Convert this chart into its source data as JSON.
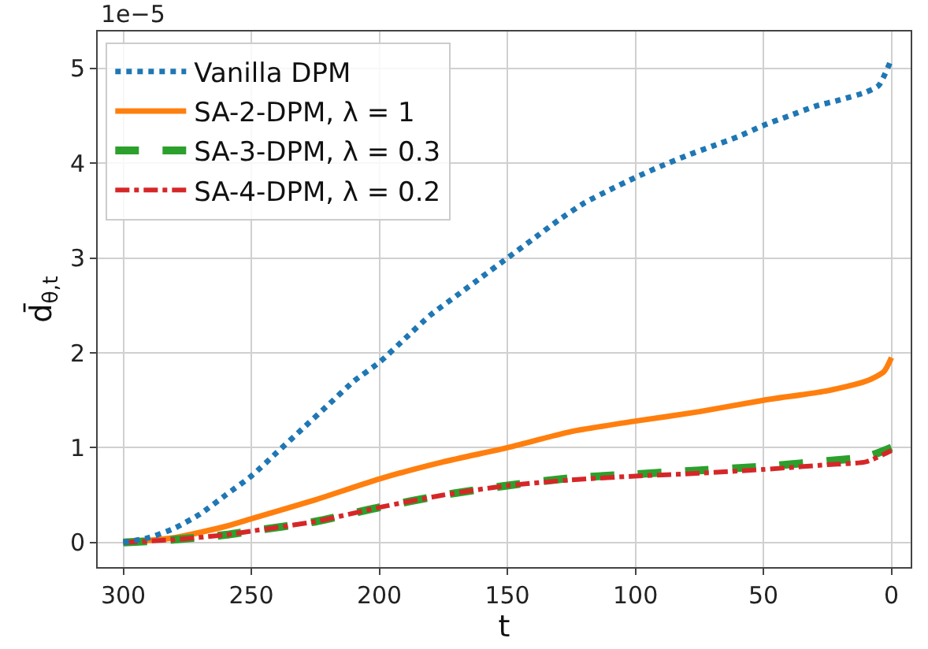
{
  "chart_data": {
    "type": "line",
    "xlabel": "t",
    "ylabel": "d̄$_{θ,t}$",
    "annotations": [
      "1e−5"
    ],
    "xlim": [
      310,
      -7.5
    ],
    "xticks": [
      300,
      250,
      200,
      150,
      100,
      50,
      0
    ],
    "ylim": [
      -0.26,
      5.39
    ],
    "yticks": [
      0,
      1,
      2,
      3,
      4,
      5
    ],
    "grid": true,
    "legend": "top left",
    "series": [
      {
        "name": "Vanilla DPM",
        "color": "#1f77b4",
        "line_style": "dotted",
        "x": [
          300,
          290,
          280,
          270,
          260,
          250,
          240,
          230,
          220,
          210,
          200,
          190,
          180,
          170,
          160,
          150,
          140,
          130,
          120,
          110,
          100,
          90,
          80,
          70,
          60,
          50,
          40,
          30,
          20,
          10,
          5,
          0
        ],
        "values": [
          0,
          0.05,
          0.15,
          0.3,
          0.5,
          0.7,
          0.95,
          1.2,
          1.45,
          1.7,
          1.9,
          2.15,
          2.4,
          2.6,
          2.8,
          3.0,
          3.2,
          3.4,
          3.58,
          3.72,
          3.85,
          3.97,
          4.08,
          4.18,
          4.28,
          4.4,
          4.5,
          4.6,
          4.67,
          4.75,
          4.82,
          5.1
        ]
      },
      {
        "name": "SA-2-DPM, λ = 1",
        "color": "#ff7f0e",
        "line_style": "solid",
        "x": [
          300,
          280,
          260,
          250,
          225,
          200,
          175,
          150,
          125,
          100,
          75,
          50,
          25,
          10,
          3,
          0
        ],
        "values": [
          0,
          0.05,
          0.17,
          0.25,
          0.45,
          0.67,
          0.85,
          1.0,
          1.17,
          1.28,
          1.38,
          1.5,
          1.6,
          1.7,
          1.8,
          1.95
        ]
      },
      {
        "name": "SA-3-DPM, λ = 0.3",
        "color": "#2ca02c",
        "line_style": "dashed",
        "x": [
          300,
          280,
          260,
          250,
          225,
          200,
          175,
          150,
          125,
          100,
          75,
          50,
          25,
          10,
          0
        ],
        "values": [
          0,
          0.03,
          0.08,
          0.12,
          0.22,
          0.37,
          0.5,
          0.6,
          0.68,
          0.72,
          0.76,
          0.8,
          0.86,
          0.9,
          1.0
        ]
      },
      {
        "name": "SA-4-DPM, λ = 0.2",
        "color": "#d62728",
        "line_style": "dashdot",
        "x": [
          300,
          280,
          260,
          250,
          225,
          200,
          175,
          150,
          125,
          100,
          75,
          50,
          25,
          10,
          0
        ],
        "values": [
          0,
          0.03,
          0.08,
          0.12,
          0.22,
          0.37,
          0.5,
          0.6,
          0.66,
          0.7,
          0.73,
          0.77,
          0.82,
          0.85,
          0.97
        ]
      }
    ]
  }
}
